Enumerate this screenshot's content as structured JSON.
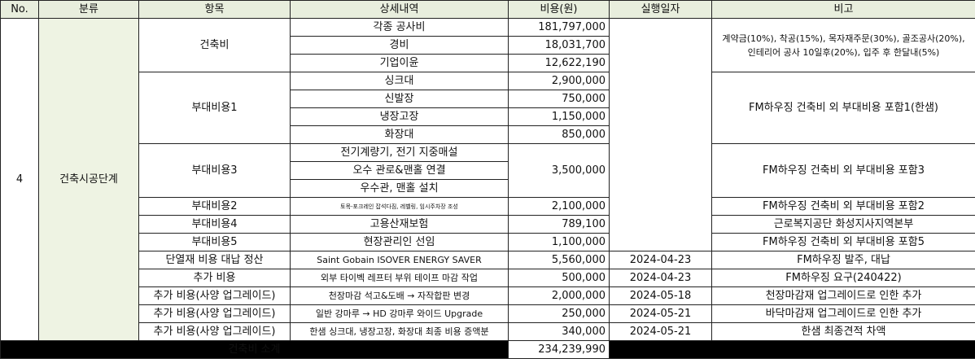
{
  "headers": [
    "No.",
    "분류",
    "항목",
    "상세내역",
    "비용(원)",
    "실행일자",
    "비고"
  ],
  "group": {
    "no": "4",
    "category": "건축시공단계"
  },
  "rows": {
    "r1": {
      "item": "건축비",
      "detail": "각종 공사비",
      "cost": "181,797,000"
    },
    "r2": {
      "detail": "경비",
      "cost": "18,031,700"
    },
    "r3": {
      "detail": "기업이윤",
      "cost": "12,622,190"
    },
    "note_build": [
      "계약금(10%), 착공(15%), 목자재주문(30%), 골조공사(20%),",
      "인테리어 공사 10일후(20%), 입주 후 한달내(5%)"
    ],
    "r4": {
      "item": "부대비용1",
      "detail": "싱크대",
      "cost": "2,900,000",
      "note": "FM하우징 건축비 외 부대비용 포함1(한샘)"
    },
    "r5": {
      "detail": "신발장",
      "cost": "750,000"
    },
    "r6": {
      "detail": "냉장고장",
      "cost": "1,150,000"
    },
    "r7": {
      "detail": "화장대",
      "cost": "850,000"
    },
    "r8": {
      "item": "부대비용3",
      "detail": "전기계량기, 전기 지중매설",
      "cost": "3,500,000",
      "note": "FM하우징 건축비 외 부대비용 포함3"
    },
    "r9": {
      "detail": "오수 관로&맨홀 연결"
    },
    "r10": {
      "detail": "우수관, 맨홀 설치"
    },
    "r11": {
      "item": "부대비용2",
      "detail": "토목-포크레인 잡석다짐, 레벨링, 임시주차장 조성",
      "cost": "2,100,000",
      "note": "FM하우징 건축비 외 부대비용 포함2"
    },
    "r12": {
      "item": "부대비용4",
      "detail": "고용산재보험",
      "cost": "789,100",
      "note": "근로복지공단 화성지사지역본부"
    },
    "r13": {
      "item": "부대비용5",
      "detail": "현장관리인 선임",
      "cost": "1,100,000",
      "note": "FM하우징 건축비 외 부대비용 포함5"
    },
    "r14": {
      "item": "단열재 비용 대납 정산",
      "detail": "Saint Gobain ISOVER ENERGY SAVER",
      "cost": "5,560,000",
      "date": "2024-04-23",
      "note": "FM하우징 발주, 대납"
    },
    "r15": {
      "item": "추가 비용",
      "detail": "외부 타이벡 레프터 부위 테이프 마감 작업",
      "cost": "500,000",
      "date": "2024-04-23",
      "note": "FM하우징 요구(240422)"
    },
    "r16": {
      "item": "추가 비용(사양 업그레이드)",
      "detail": "천장마감 석고&도배 → 자작합판 변경",
      "cost": "2,000,000",
      "date": "2024-05-18",
      "note": "천장마감재 업그레이드로 인한 추가"
    },
    "r17": {
      "item": "추가 비용(사양 업그레이드)",
      "detail": "일반 강마루 → HD 강마루 와이드 Upgrade",
      "cost": "250,000",
      "date": "2024-05-21",
      "note": "바닥마감재 업그레이드로 인한 추가"
    },
    "r18": {
      "item": "추가 비용(사양 업그레이드)",
      "detail": "한샘 싱크대, 냉장고장, 화장대 최종 비용 증액분",
      "cost": "340,000",
      "date": "2024-05-21",
      "note": "한샘 최종견적 차액"
    }
  },
  "total": {
    "label": "건축비 소계",
    "amount": "234,239,990"
  }
}
